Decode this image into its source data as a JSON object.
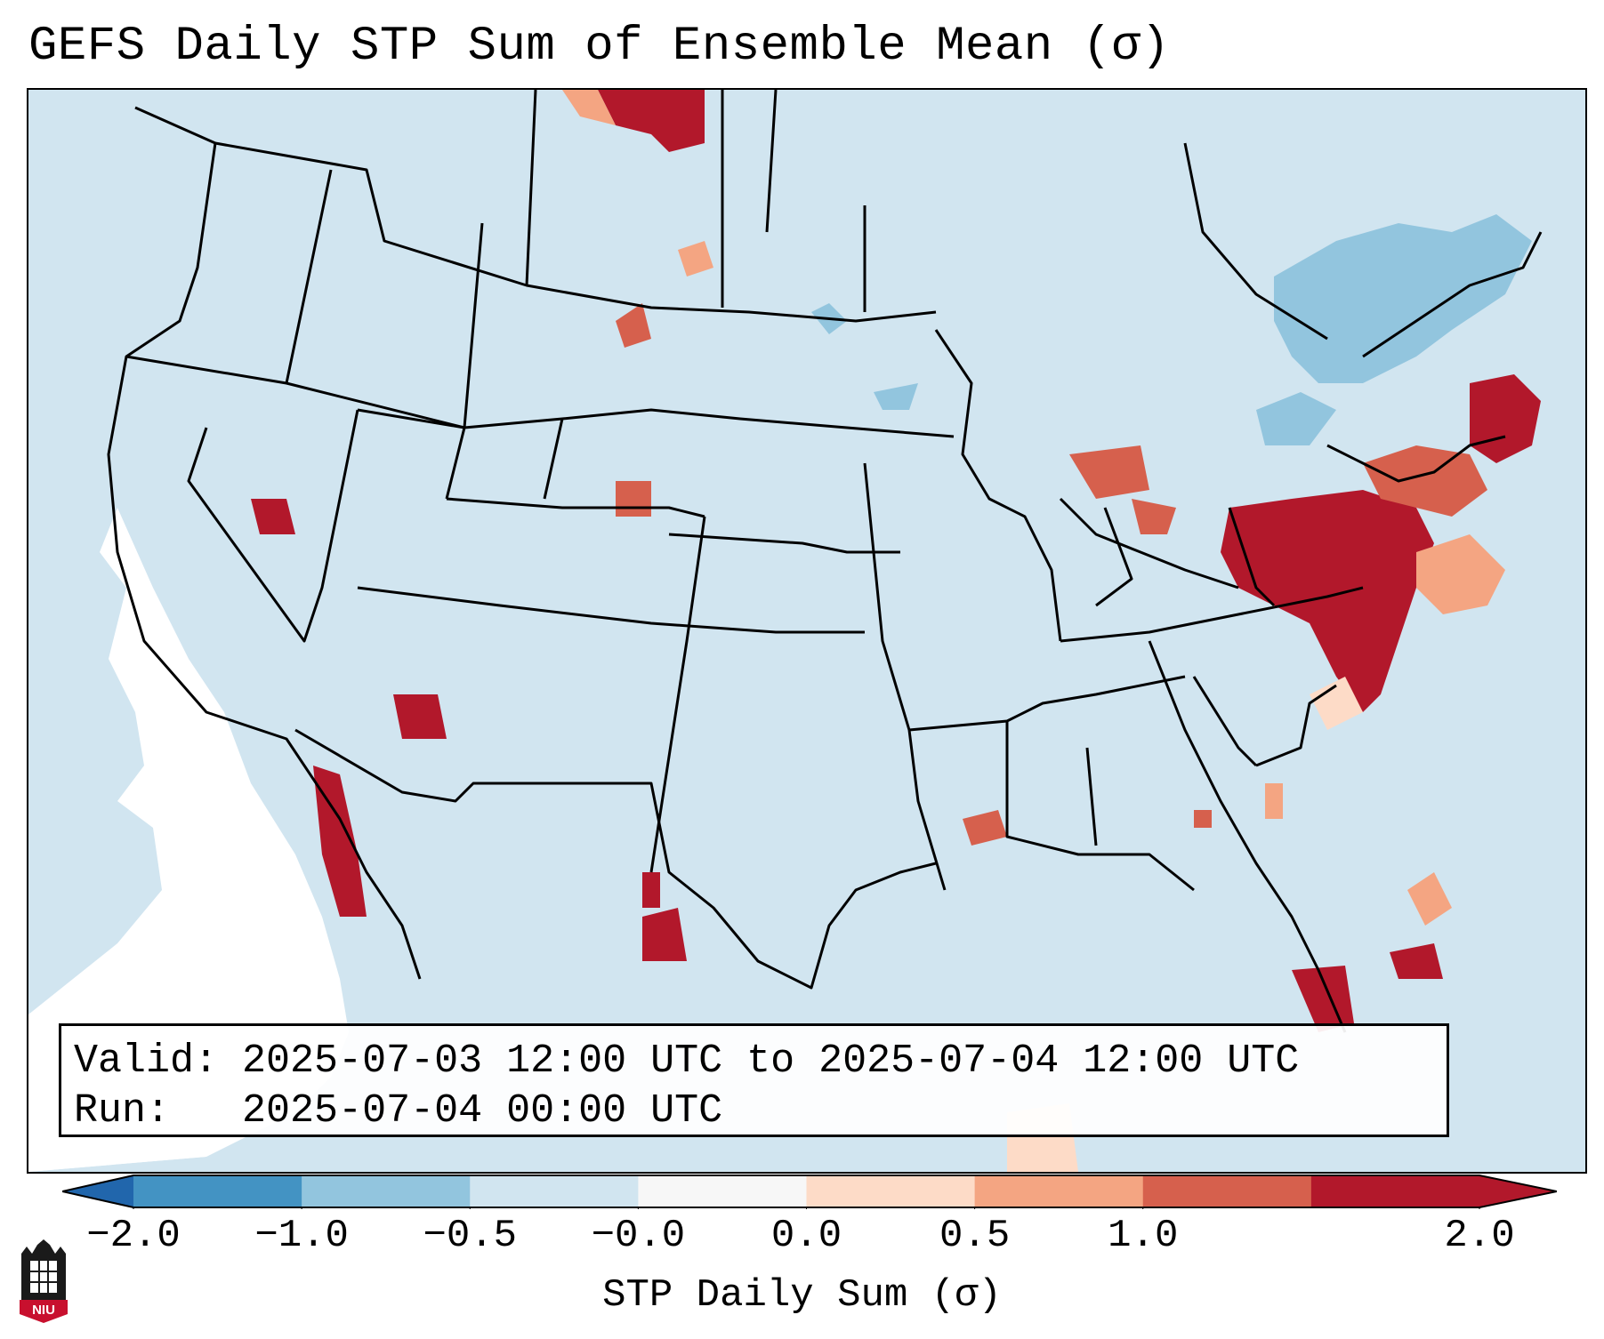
{
  "title": "GEFS Daily STP Sum of Ensemble Mean (σ)",
  "info": {
    "valid_label": "Valid:",
    "valid_value": "2025-07-03 12:00 UTC to 2025-07-04 12:00 UTC",
    "run_label": "Run:",
    "run_value": "2025-07-04 00:00 UTC"
  },
  "colorbar": {
    "label": "STP Daily Sum (σ)",
    "ticks": [
      "−2.0",
      "−1.0",
      "−0.5",
      "−0.0",
      "0.0",
      "0.5",
      "1.0",
      "2.0"
    ],
    "colors": [
      "#4393c3",
      "#92c5de",
      "#d1e5f0",
      "#f7f7f7",
      "#fddbc7",
      "#f4a582",
      "#d6604d",
      "#b2182b"
    ],
    "extend_low_color": "#2166ac",
    "extend_high_color": "#b2182b"
  },
  "map": {
    "projection": "Lambert Conformal",
    "region": "Continental United States",
    "legend_position": "bottom-left"
  },
  "logo_text": "NIU"
}
